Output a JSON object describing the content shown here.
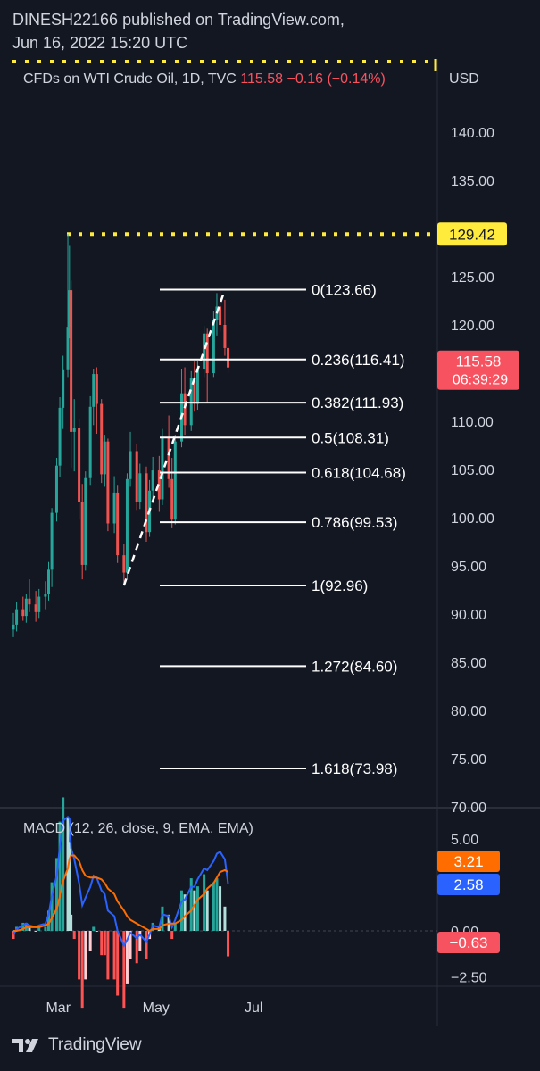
{
  "header": {
    "line1": "DINESH22166 published on TradingView.com,",
    "line2": "Jun 16, 2022 15:20 UTC"
  },
  "legend": {
    "symbol": "CFDs on WTI Crude Oil, 1D, TVC",
    "last": "115.58",
    "change": "−0.16 (−0.14%)"
  },
  "price_axis": {
    "currency": "USD",
    "ticks": [
      "140.00",
      "135.00",
      "130.00",
      "125.00",
      "120.00",
      "115.00",
      "110.00",
      "105.00",
      "100.00",
      "95.00",
      "90.00",
      "85.00",
      "80.00",
      "75.00",
      "70.00"
    ],
    "high_label": "129.42",
    "last_label": "115.58",
    "countdown": "06:39:29"
  },
  "macd": {
    "title": "MACD (12, 26, close, 9, EMA, EMA)",
    "ticks": [
      "5.00",
      "0.00",
      "−2.50"
    ],
    "signal_label": "3.21",
    "macd_label": "2.58",
    "hist_label": "−0.63"
  },
  "time_axis": [
    "Mar",
    "May",
    "Jul"
  ],
  "footer": {
    "brand": "TradingView"
  },
  "colors": {
    "up": "#26a69a",
    "down": "#ef5350",
    "highline": "#ffeb3b",
    "fib": "#ffffff",
    "macd_line": "#2962ff",
    "signal_line": "#ff6d00",
    "last_badge": "#f7525f"
  },
  "chart_data": {
    "type": "candlestick",
    "symbol": "CFDs on WTI Crude Oil",
    "interval": "1D",
    "y_range": [
      70,
      142
    ],
    "x_range": [
      "2022-02-01",
      "2022-07-30"
    ],
    "x_ticks": [
      "Mar",
      "May",
      "Jul"
    ],
    "candles": [
      {
        "date": "2022-02-01",
        "o": 88.4,
        "h": 90.1,
        "l": 87.6,
        "c": 88.9
      },
      {
        "date": "2022-02-03",
        "o": 88.9,
        "h": 91.3,
        "l": 88.2,
        "c": 90.5
      },
      {
        "date": "2022-02-07",
        "o": 90.5,
        "h": 91.8,
        "l": 89.3,
        "c": 89.8
      },
      {
        "date": "2022-02-09",
        "o": 89.8,
        "h": 92.1,
        "l": 89.1,
        "c": 91.6
      },
      {
        "date": "2022-02-11",
        "o": 91.6,
        "h": 93.6,
        "l": 90.2,
        "c": 91.0
      },
      {
        "date": "2022-02-15",
        "o": 91.0,
        "h": 92.4,
        "l": 89.2,
        "c": 90.2
      },
      {
        "date": "2022-02-17",
        "o": 90.2,
        "h": 92.6,
        "l": 89.6,
        "c": 91.8
      },
      {
        "date": "2022-02-21",
        "o": 91.8,
        "h": 93.4,
        "l": 90.5,
        "c": 92.1
      },
      {
        "date": "2022-02-23",
        "o": 92.1,
        "h": 95.4,
        "l": 91.4,
        "c": 94.6
      },
      {
        "date": "2022-02-25",
        "o": 94.6,
        "h": 101.0,
        "l": 92.8,
        "c": 100.5
      },
      {
        "date": "2022-02-28",
        "o": 100.5,
        "h": 106.2,
        "l": 99.6,
        "c": 105.4
      },
      {
        "date": "2022-03-02",
        "o": 105.4,
        "h": 112.5,
        "l": 104.2,
        "c": 111.4
      },
      {
        "date": "2022-03-04",
        "o": 111.4,
        "h": 116.8,
        "l": 109.2,
        "c": 115.3
      },
      {
        "date": "2022-03-07",
        "o": 115.3,
        "h": 129.42,
        "l": 114.6,
        "c": 119.8
      },
      {
        "date": "2022-03-08",
        "o": 119.8,
        "h": 128.2,
        "l": 118.6,
        "c": 123.6
      },
      {
        "date": "2022-03-09",
        "o": 123.6,
        "h": 124.6,
        "l": 105.2,
        "c": 108.9
      },
      {
        "date": "2022-03-11",
        "o": 108.9,
        "h": 112.3,
        "l": 104.8,
        "c": 109.3
      },
      {
        "date": "2022-03-14",
        "o": 109.3,
        "h": 110.2,
        "l": 99.8,
        "c": 101.6
      },
      {
        "date": "2022-03-16",
        "o": 101.6,
        "h": 103.5,
        "l": 93.6,
        "c": 95.1
      },
      {
        "date": "2022-03-18",
        "o": 95.1,
        "h": 104.8,
        "l": 94.5,
        "c": 104.1
      },
      {
        "date": "2022-03-21",
        "o": 104.1,
        "h": 112.6,
        "l": 103.4,
        "c": 111.5
      },
      {
        "date": "2022-03-23",
        "o": 111.5,
        "h": 115.4,
        "l": 109.6,
        "c": 114.9
      },
      {
        "date": "2022-03-25",
        "o": 114.9,
        "h": 115.6,
        "l": 108.7,
        "c": 111.8
      },
      {
        "date": "2022-03-28",
        "o": 111.8,
        "h": 112.3,
        "l": 103.6,
        "c": 104.5
      },
      {
        "date": "2022-03-30",
        "o": 104.5,
        "h": 108.6,
        "l": 103.2,
        "c": 107.9
      },
      {
        "date": "2022-04-01",
        "o": 107.9,
        "h": 108.2,
        "l": 98.6,
        "c": 99.4
      },
      {
        "date": "2022-04-05",
        "o": 99.4,
        "h": 104.3,
        "l": 98.4,
        "c": 102.6
      },
      {
        "date": "2022-04-07",
        "o": 102.6,
        "h": 103.4,
        "l": 95.3,
        "c": 96.1
      },
      {
        "date": "2022-04-11",
        "o": 96.1,
        "h": 97.3,
        "l": 92.96,
        "c": 94.3
      },
      {
        "date": "2022-04-13",
        "o": 94.3,
        "h": 104.6,
        "l": 93.6,
        "c": 104.0
      },
      {
        "date": "2022-04-15",
        "o": 104.0,
        "h": 108.9,
        "l": 103.2,
        "c": 106.9
      },
      {
        "date": "2022-04-19",
        "o": 106.9,
        "h": 107.6,
        "l": 100.8,
        "c": 101.6
      },
      {
        "date": "2022-04-21",
        "o": 101.6,
        "h": 105.6,
        "l": 100.9,
        "c": 104.6
      },
      {
        "date": "2022-04-25",
        "o": 104.6,
        "h": 105.3,
        "l": 97.5,
        "c": 98.5
      },
      {
        "date": "2022-04-27",
        "o": 98.5,
        "h": 103.9,
        "l": 98.0,
        "c": 102.8
      },
      {
        "date": "2022-04-29",
        "o": 102.8,
        "h": 106.3,
        "l": 102.0,
        "c": 104.9
      },
      {
        "date": "2022-05-03",
        "o": 104.9,
        "h": 106.4,
        "l": 100.6,
        "c": 101.9
      },
      {
        "date": "2022-05-05",
        "o": 101.9,
        "h": 109.2,
        "l": 101.3,
        "c": 108.3
      },
      {
        "date": "2022-05-09",
        "o": 108.3,
        "h": 110.6,
        "l": 103.1,
        "c": 104.0
      },
      {
        "date": "2022-05-11",
        "o": 104.0,
        "h": 106.2,
        "l": 98.9,
        "c": 99.8
      },
      {
        "date": "2022-05-13",
        "o": 99.8,
        "h": 108.6,
        "l": 99.3,
        "c": 107.9
      },
      {
        "date": "2022-05-17",
        "o": 107.9,
        "h": 115.4,
        "l": 107.3,
        "c": 112.9
      },
      {
        "date": "2022-05-19",
        "o": 112.9,
        "h": 115.6,
        "l": 108.6,
        "c": 109.6
      },
      {
        "date": "2022-05-23",
        "o": 109.6,
        "h": 115.2,
        "l": 109.0,
        "c": 114.5
      },
      {
        "date": "2022-05-25",
        "o": 114.5,
        "h": 116.3,
        "l": 111.0,
        "c": 111.8
      },
      {
        "date": "2022-05-27",
        "o": 111.8,
        "h": 116.3,
        "l": 111.2,
        "c": 115.4
      },
      {
        "date": "2022-05-31",
        "o": 115.4,
        "h": 119.9,
        "l": 114.6,
        "c": 119.1
      },
      {
        "date": "2022-06-02",
        "o": 119.1,
        "h": 119.6,
        "l": 112.0,
        "c": 115.0
      },
      {
        "date": "2022-06-06",
        "o": 115.0,
        "h": 121.4,
        "l": 114.6,
        "c": 120.5
      },
      {
        "date": "2022-06-08",
        "o": 120.5,
        "h": 123.3,
        "l": 118.9,
        "c": 121.9
      },
      {
        "date": "2022-06-10",
        "o": 121.9,
        "h": 123.66,
        "l": 119.3,
        "c": 120.0
      },
      {
        "date": "2022-06-13",
        "o": 120.0,
        "h": 122.6,
        "l": 116.8,
        "c": 117.6
      },
      {
        "date": "2022-06-15",
        "o": 117.6,
        "h": 118.0,
        "l": 115.0,
        "c": 115.58
      }
    ],
    "highest_high": 129.42,
    "last_price": 115.58,
    "fibonacci": {
      "from": {
        "date": "2022-04-11",
        "price": 92.96
      },
      "to": {
        "date": "2022-06-13",
        "price": 123.66
      },
      "levels": [
        {
          "label": "0(123.66)",
          "value": 123.66
        },
        {
          "label": "0.236(116.41)",
          "value": 116.41
        },
        {
          "label": "0.382(111.93)",
          "value": 111.93
        },
        {
          "label": "0.5(108.31)",
          "value": 108.31
        },
        {
          "label": "0.618(104.68)",
          "value": 104.68
        },
        {
          "label": "0.786(99.53)",
          "value": 99.53
        },
        {
          "label": "1(92.96)",
          "value": 92.96
        },
        {
          "label": "1.272(84.60)",
          "value": 84.6
        },
        {
          "label": "1.618(73.98)",
          "value": 73.98
        }
      ]
    },
    "macd": {
      "params": "12, 26, close, 9, EMA, EMA",
      "y_range": [
        -3,
        6
      ],
      "last": {
        "histogram": -0.63,
        "macd": 2.58,
        "signal": 3.21
      },
      "macd_line": [
        -0.2,
        0.1,
        0.3,
        0.4,
        0.3,
        0.2,
        0.3,
        0.4,
        0.9,
        1.9,
        3.0,
        4.6,
        6.0,
        6.2,
        6.1,
        4.5,
        3.9,
        2.6,
        1.4,
        1.8,
        2.4,
        3.0,
        2.9,
        2.2,
        2.0,
        1.1,
        0.8,
        0.0,
        -0.8,
        -0.5,
        -0.1,
        -0.4,
        -0.2,
        -0.6,
        -0.2,
        0.3,
        0.2,
        0.9,
        0.8,
        0.2,
        0.6,
        1.6,
        1.7,
        2.4,
        2.4,
        2.8,
        3.4,
        3.3,
        3.8,
        4.2,
        4.3,
        3.9,
        2.58
      ],
      "signal_line": [
        0.0,
        0.0,
        0.1,
        0.2,
        0.2,
        0.2,
        0.2,
        0.3,
        0.4,
        0.7,
        1.2,
        1.9,
        2.7,
        3.4,
        3.9,
        4.1,
        4.1,
        3.8,
        3.3,
        3.0,
        2.9,
        2.9,
        2.9,
        2.8,
        2.6,
        2.3,
        2.0,
        1.6,
        1.1,
        0.8,
        0.6,
        0.4,
        0.3,
        0.1,
        0.0,
        0.1,
        0.1,
        0.3,
        0.4,
        0.4,
        0.4,
        0.6,
        0.8,
        1.1,
        1.4,
        1.7,
        2.0,
        2.3,
        2.6,
        2.9,
        3.2,
        3.3,
        3.21
      ]
    }
  }
}
